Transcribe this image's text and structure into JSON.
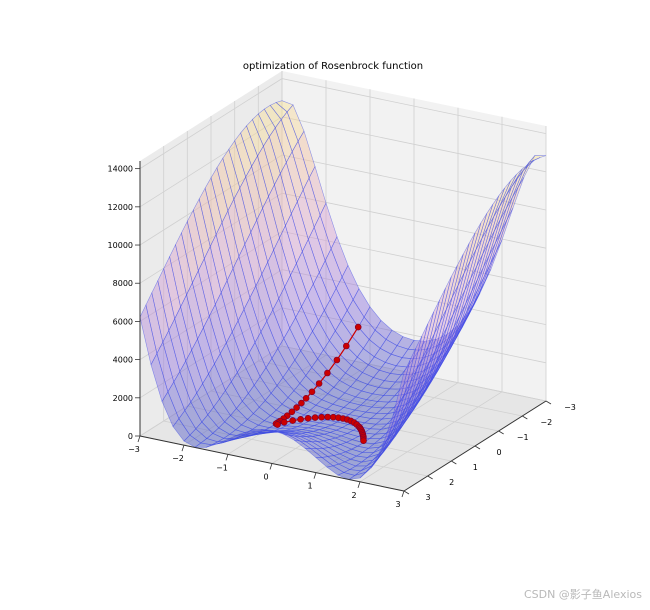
{
  "watermark": "CSDN @影子鱼Alexios",
  "chart_data": {
    "type": "surface3d",
    "title": "optimization of Rosenbrock function",
    "xlabel": "",
    "ylabel": "",
    "zlabel": "",
    "xlim": [
      -3,
      3
    ],
    "ylim": [
      -3,
      3
    ],
    "zlim": [
      0,
      14400
    ],
    "x_ticks": [
      -3,
      -2,
      -1,
      0,
      1,
      2,
      3
    ],
    "y_ticks": [
      -3,
      -2,
      -1,
      0,
      1,
      2,
      3
    ],
    "z_ticks": [
      0,
      2000,
      4000,
      6000,
      8000,
      10000,
      12000,
      14000
    ],
    "surface_function": "rosenbrock",
    "surface_colormap": [
      "#3b4cc0",
      "#8c6be0",
      "#d79ad0",
      "#f3c09a",
      "#fff58a"
    ],
    "mesh_line_color": "#3c4ae8",
    "grid": true,
    "path_color": "#cc0000",
    "optimization_path": [
      {
        "x": -1.0,
        "y": -2.5
      },
      {
        "x": -1.0,
        "y": -2.0
      },
      {
        "x": -1.0,
        "y": -1.6
      },
      {
        "x": -1.0,
        "y": -1.2
      },
      {
        "x": -1.0,
        "y": -0.85
      },
      {
        "x": -1.0,
        "y": -0.55
      },
      {
        "x": -1.0,
        "y": -0.3
      },
      {
        "x": -1.0,
        "y": -0.1
      },
      {
        "x": -1.0,
        "y": 0.1
      },
      {
        "x": -1.0,
        "y": 0.3
      },
      {
        "x": -1.0,
        "y": 0.5
      },
      {
        "x": -1.0,
        "y": 0.65
      },
      {
        "x": -1.0,
        "y": 0.8
      },
      {
        "x": -1.0,
        "y": 0.9
      },
      {
        "x": -1.0,
        "y": 0.97
      },
      {
        "x": -0.95,
        "y": 1.0
      },
      {
        "x": -0.9,
        "y": 0.81
      },
      {
        "x": -0.8,
        "y": 0.64
      },
      {
        "x": -0.7,
        "y": 0.49
      },
      {
        "x": -0.6,
        "y": 0.36
      },
      {
        "x": -0.5,
        "y": 0.25
      },
      {
        "x": -0.4,
        "y": 0.16
      },
      {
        "x": -0.3,
        "y": 0.09
      },
      {
        "x": -0.2,
        "y": 0.04
      },
      {
        "x": -0.1,
        "y": 0.01
      },
      {
        "x": 0.0,
        "y": 0.0
      },
      {
        "x": 0.1,
        "y": 0.01
      },
      {
        "x": 0.2,
        "y": 0.04
      },
      {
        "x": 0.3,
        "y": 0.09
      },
      {
        "x": 0.4,
        "y": 0.16
      },
      {
        "x": 0.5,
        "y": 0.25
      },
      {
        "x": 0.55,
        "y": 0.3
      },
      {
        "x": 0.6,
        "y": 0.36
      },
      {
        "x": 0.65,
        "y": 0.42
      },
      {
        "x": 0.7,
        "y": 0.49
      },
      {
        "x": 0.75,
        "y": 0.56
      },
      {
        "x": 0.8,
        "y": 0.64
      },
      {
        "x": 0.85,
        "y": 0.72
      },
      {
        "x": 0.9,
        "y": 0.81
      },
      {
        "x": 0.95,
        "y": 0.9
      }
    ]
  }
}
